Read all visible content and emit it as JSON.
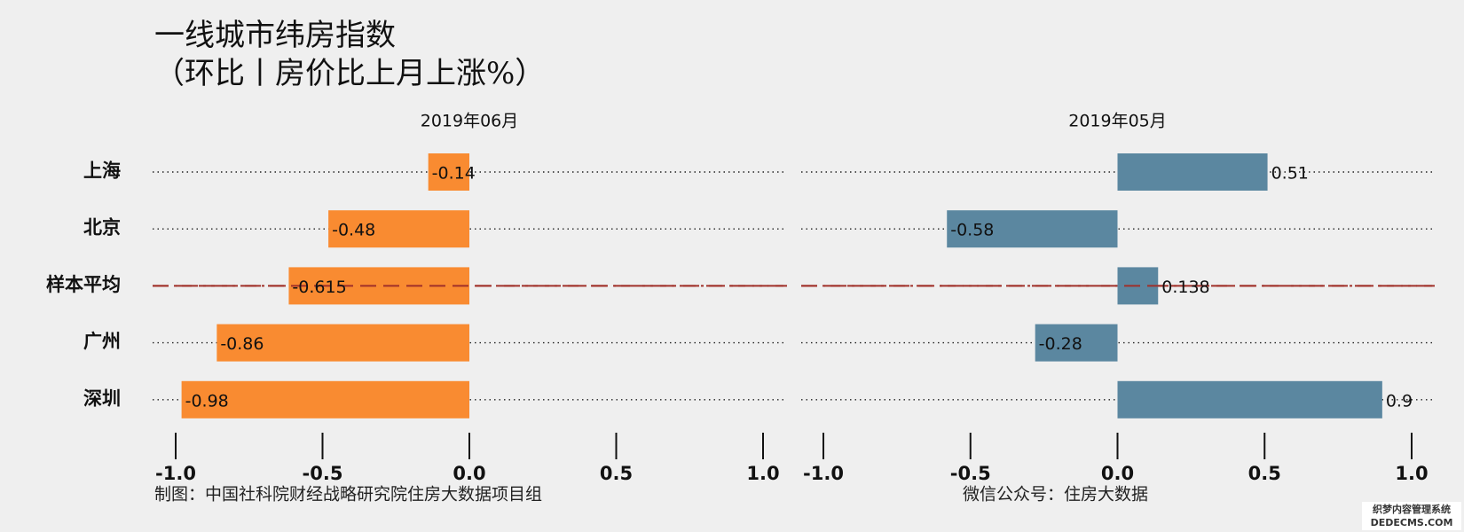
{
  "title": [
    "一线城市纬房指数",
    "（环比丨房价比上月上涨%）"
  ],
  "categories": [
    "上海",
    "北京",
    "样本平均",
    "广州",
    "深圳"
  ],
  "row_line_styles": [
    "dotted",
    "dotted",
    "dashdot",
    "dotted",
    "dotted"
  ],
  "chart_data": [
    {
      "type": "bar",
      "orientation": "horizontal",
      "title": "2019年06月",
      "values": [
        -0.14,
        -0.48,
        -0.615,
        -0.86,
        -0.98
      ],
      "color": "#f98b31",
      "xlim": [
        -1,
        1
      ],
      "xticks": [
        {
          "value": -1,
          "label": "-1.0"
        },
        -0.5,
        {
          "value": 0,
          "label": "0.0"
        },
        0.5,
        {
          "value": 1,
          "label": "1.0"
        }
      ]
    },
    {
      "type": "bar",
      "orientation": "horizontal",
      "title": "2019年05月",
      "values": [
        0.51,
        -0.58,
        0.138,
        -0.28,
        0.9
      ],
      "color": "#5b87a0",
      "xlim": [
        -1,
        1
      ],
      "xticks": [
        {
          "value": -1,
          "label": "-1.0"
        },
        -0.5,
        {
          "value": 0,
          "label": "0.0"
        },
        0.5,
        {
          "value": 1,
          "label": "1.0"
        }
      ]
    }
  ],
  "footer": {
    "left": "制图：中国社科院财经战略研究院住房大数据项目组",
    "right": "微信公众号：住房大数据"
  },
  "watermark": [
    "织梦内容管理系统",
    "DEDECMS.COM"
  ]
}
